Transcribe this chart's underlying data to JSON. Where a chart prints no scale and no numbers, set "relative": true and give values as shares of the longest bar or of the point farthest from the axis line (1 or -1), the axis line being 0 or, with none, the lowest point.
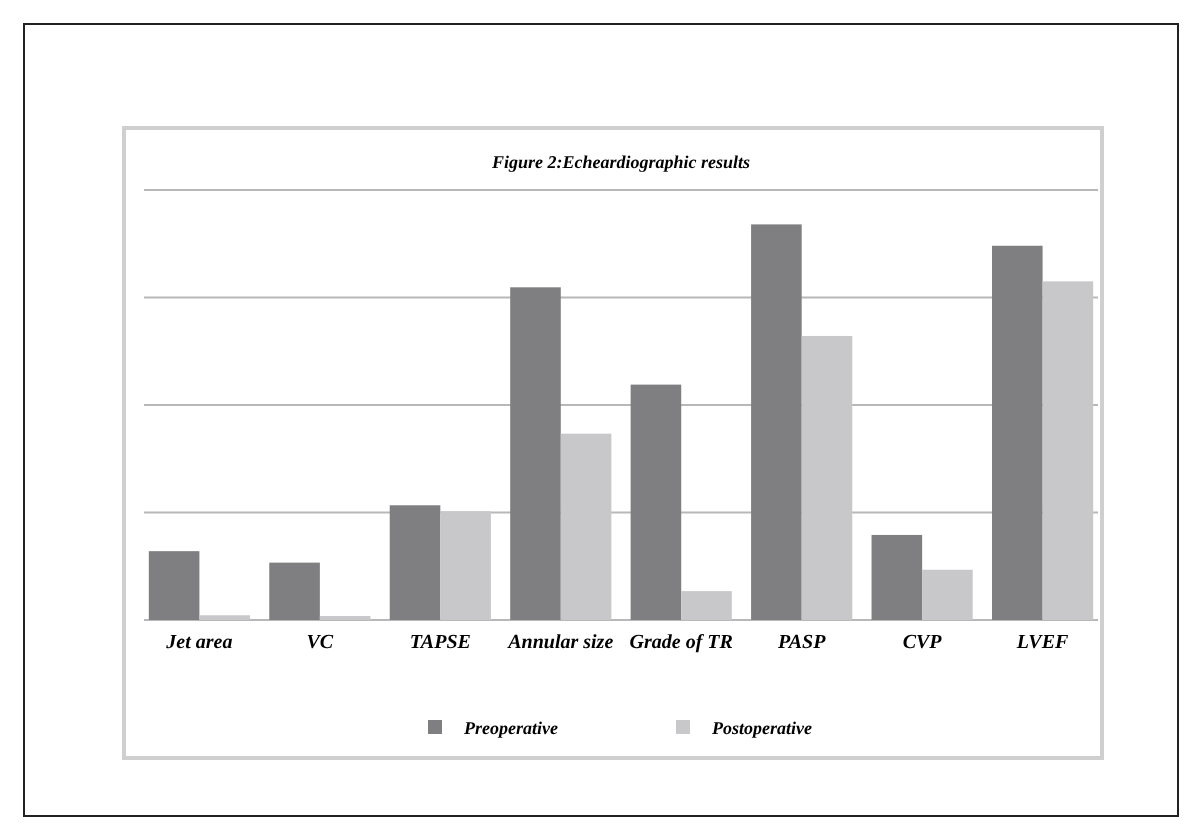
{
  "chart_data": {
    "type": "bar",
    "title": "Figure 2:Echeardiographic results",
    "relative": true,
    "grid": "y",
    "legend": "bottom",
    "categories": [
      "Jet area",
      "VC",
      "TAPSE",
      "Annular size",
      "Grade of TR",
      "PASP",
      "CVP",
      "LVEF"
    ],
    "series": [
      {
        "name": "Preoperative",
        "color": "#7f7f81",
        "values": [
          0.174,
          0.145,
          0.29,
          0.841,
          0.595,
          1,
          0.215,
          0.946
        ]
      },
      {
        "name": "Postoperative",
        "color": "#c8c8ca",
        "values": [
          0.012,
          0.01,
          0.275,
          0.471,
          0.073,
          0.718,
          0.127,
          0.856
        ]
      }
    ]
  }
}
